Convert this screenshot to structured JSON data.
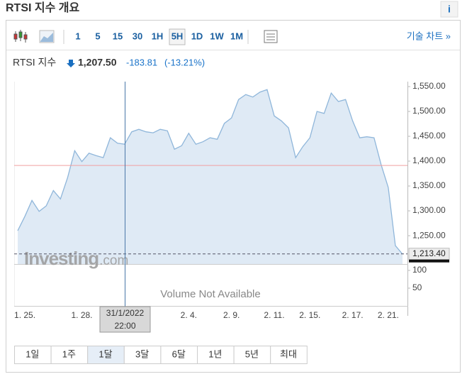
{
  "header": {
    "title": "RTSI 지수 개요",
    "info": "i"
  },
  "toolbar": {
    "intervals": [
      "1",
      "5",
      "15",
      "30",
      "1H",
      "5H",
      "1D",
      "1W",
      "1M"
    ],
    "selected": "5H",
    "technical_link": "기술 차트 »"
  },
  "quote": {
    "name": "RTSI 지수",
    "price": "1,207.50",
    "change": "-183.81",
    "change_percent": "(-13.21%)"
  },
  "chart_data": {
    "type": "area",
    "categories": [
      null,
      "1. 25.",
      null,
      null,
      null,
      null,
      null,
      null,
      null,
      "1. 28.",
      null,
      null,
      null,
      null,
      null,
      null,
      null,
      null,
      null,
      null,
      null,
      null,
      null,
      null,
      "2. 4.",
      null,
      null,
      null,
      null,
      null,
      "2. 9.",
      null,
      null,
      null,
      null,
      null,
      "2. 11.",
      null,
      null,
      null,
      null,
      "2. 15.",
      null,
      null,
      null,
      null,
      null,
      "2. 17.",
      null,
      null,
      null,
      null,
      "2. 21.",
      null,
      null
    ],
    "values": [
      1260,
      1289,
      1321,
      1299,
      1310,
      1341,
      1324,
      1367,
      1421,
      1399,
      1416,
      1411,
      1407,
      1447,
      1436,
      1434,
      1459,
      1464,
      1459,
      1457,
      1464,
      1461,
      1424,
      1431,
      1456,
      1434,
      1439,
      1447,
      1444,
      1476,
      1487,
      1524,
      1534,
      1529,
      1539,
      1544,
      1491,
      1481,
      1467,
      1407,
      1429,
      1447,
      1500,
      1496,
      1537,
      1520,
      1524,
      1481,
      1447,
      1449,
      1447,
      1393,
      1347,
      1230,
      1213
    ],
    "color": "#8fb6da",
    "fill": "#dfeaf5",
    "ylim": [
      1193,
      1560
    ],
    "yticks": [
      {
        "value": 1250,
        "label": "1,250.00"
      },
      {
        "value": 1300,
        "label": "1,300.00"
      },
      {
        "value": 1350,
        "label": "1,350.00"
      },
      {
        "value": 1400,
        "label": "1,400.00"
      },
      {
        "value": 1450,
        "label": "1,450.00"
      },
      {
        "value": 1500,
        "label": "1,500.00"
      },
      {
        "value": 1550,
        "label": "1,550.00"
      }
    ],
    "last_value": {
      "value": 1213.4,
      "label": "1,213.40"
    },
    "reference_line": 1391.31,
    "crosshair": {
      "date": "31/1/2022",
      "time": "22:00"
    },
    "y2lim": [
      0,
      118
    ],
    "y2ticks": [
      50,
      100
    ],
    "volume_note": "Volume Not Available",
    "watermark": {
      "brand": "Investing",
      "suffix": ".com"
    }
  },
  "ranges": {
    "labels": [
      "1일",
      "1주",
      "1달",
      "3달",
      "6달",
      "1년",
      "5년",
      "최대"
    ],
    "selected": "1달"
  }
}
